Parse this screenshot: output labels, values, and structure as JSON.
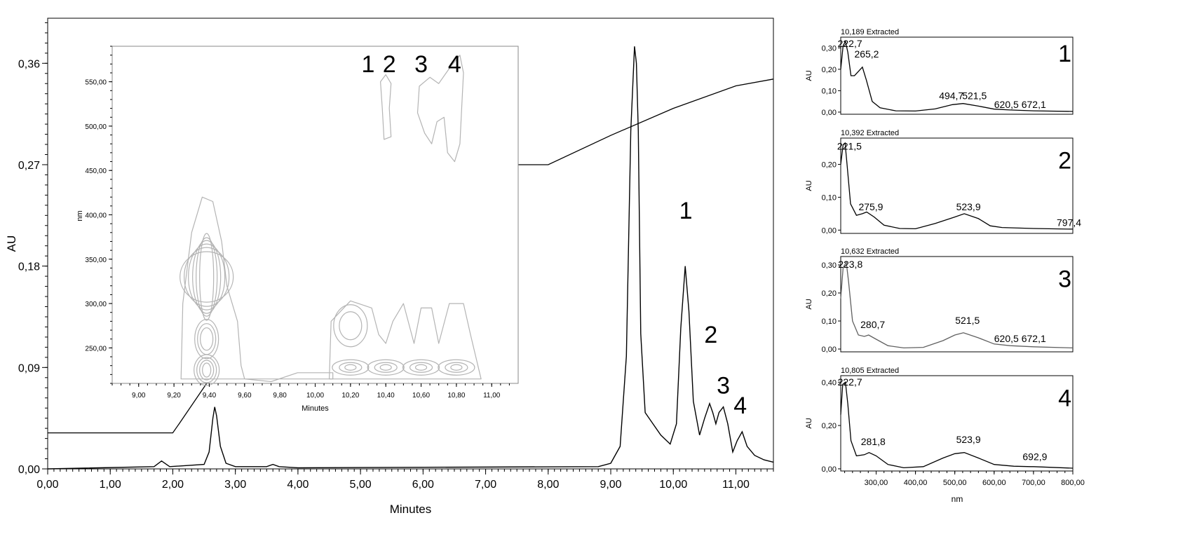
{
  "chart_data": [
    {
      "id": "main",
      "type": "line",
      "xlabel": "Minutes",
      "ylabel": "AU",
      "xlim": [
        0,
        11.6
      ],
      "ylim": [
        0,
        0.4
      ],
      "x_ticks": [
        0,
        1,
        2,
        3,
        4,
        5,
        6,
        7,
        8,
        9,
        10,
        11
      ],
      "x_tick_labels": [
        "0,00",
        "1,00",
        "2,00",
        "3,00",
        "4,00",
        "5,00",
        "6,00",
        "7,00",
        "8,00",
        "9,00",
        "10,00",
        "11,00"
      ],
      "y_ticks": [
        0,
        0.09,
        0.18,
        0.27,
        0.36
      ],
      "y_tick_labels": [
        "0,00",
        "0,09",
        "0,18",
        "0,27",
        "0,36"
      ],
      "series": [
        {
          "role": "chromatogram",
          "x": [
            0,
            1.7,
            1.82,
            1.95,
            2.5,
            2.58,
            2.64,
            2.67,
            2.7,
            2.76,
            2.85,
            3.0,
            3.5,
            3.6,
            3.7,
            4.0,
            8.8,
            9.0,
            9.15,
            9.25,
            9.32,
            9.38,
            9.41,
            9.44,
            9.48,
            9.55,
            9.65,
            9.8,
            9.95,
            10.05,
            10.12,
            10.19,
            10.25,
            10.32,
            10.42,
            10.5,
            10.58,
            10.63,
            10.68,
            10.73,
            10.8,
            10.87,
            10.95,
            11.02,
            11.1,
            11.18,
            11.3,
            11.45,
            11.6
          ],
          "values": [
            0,
            0.002,
            0.007,
            0.002,
            0.004,
            0.015,
            0.045,
            0.055,
            0.047,
            0.02,
            0.005,
            0.002,
            0.002,
            0.004,
            0.002,
            0.001,
            0.002,
            0.005,
            0.02,
            0.1,
            0.3,
            0.375,
            0.36,
            0.3,
            0.12,
            0.05,
            0.042,
            0.03,
            0.022,
            0.04,
            0.125,
            0.18,
            0.14,
            0.06,
            0.03,
            0.045,
            0.058,
            0.05,
            0.04,
            0.05,
            0.055,
            0.04,
            0.015,
            0.025,
            0.033,
            0.02,
            0.012,
            0.008,
            0.006
          ]
        },
        {
          "role": "gradient",
          "x": [
            0,
            2.0,
            2.1,
            4.8,
            5.1,
            8.0,
            9.0,
            10.0,
            11.0,
            11.6
          ],
          "values": [
            0.032,
            0.032,
            0.04,
            0.26,
            0.27,
            0.27,
            0.296,
            0.32,
            0.34,
            0.346
          ]
        }
      ],
      "peak_labels": [
        "1",
        "2",
        "3",
        "4"
      ]
    },
    {
      "id": "contour",
      "type": "contour",
      "xlabel": "Minutes",
      "ylabel": "nm",
      "xlim": [
        8.85,
        11.15
      ],
      "ylim": [
        210,
        590
      ],
      "x_tick_labels": [
        "9,00",
        "9,20",
        "9,40",
        "9,60",
        "9,80",
        "10,00",
        "10,20",
        "10,40",
        "10,60",
        "10,80",
        "11,00"
      ],
      "x_ticks": [
        9.0,
        9.2,
        9.4,
        9.6,
        9.8,
        10.0,
        10.2,
        10.4,
        10.6,
        10.8,
        11.0
      ],
      "y_tick_labels": [
        "250,00",
        "300,00",
        "350,00",
        "400,00",
        "450,00",
        "500,00",
        "550,00"
      ],
      "y_ticks": [
        250,
        300,
        350,
        400,
        450,
        500,
        550
      ],
      "peak_labels": [
        "1",
        "2",
        "3",
        "4"
      ]
    },
    {
      "id": "spectrum-1",
      "type": "line",
      "title": "10,189 Extracted",
      "ylabel": "AU",
      "panel_label": "1",
      "ylim": [
        -0.01,
        0.35
      ],
      "y_ticks": [
        0,
        0.1,
        0.2,
        0.3
      ],
      "y_tick_labels": [
        "0,00",
        "0,10",
        "0,20",
        "0,30"
      ],
      "xlim": [
        210,
        800
      ],
      "x": [
        210,
        216,
        222,
        228,
        236,
        245,
        255,
        265,
        275,
        290,
        310,
        350,
        400,
        450,
        494,
        521,
        560,
        600,
        640,
        700,
        800
      ],
      "values": [
        0.2,
        0.31,
        0.33,
        0.28,
        0.17,
        0.17,
        0.19,
        0.21,
        0.15,
        0.05,
        0.02,
        0.006,
        0.005,
        0.015,
        0.035,
        0.04,
        0.028,
        0.014,
        0.01,
        0.006,
        0.003
      ],
      "peak_labels": [
        "222,7",
        "265,2",
        "494,7",
        "521,5",
        "620,5",
        "672,1"
      ]
    },
    {
      "id": "spectrum-2",
      "type": "line",
      "title": "10,392 Extracted",
      "ylabel": "AU",
      "panel_label": "2",
      "ylim": [
        -0.01,
        0.28
      ],
      "y_ticks": [
        0,
        0.1,
        0.2
      ],
      "y_tick_labels": [
        "0,00",
        "0,10",
        "0,20"
      ],
      "xlim": [
        210,
        800
      ],
      "x": [
        210,
        216,
        221,
        226,
        235,
        250,
        265,
        276,
        295,
        320,
        360,
        400,
        450,
        500,
        524,
        560,
        590,
        620,
        700,
        797,
        800
      ],
      "values": [
        0.2,
        0.26,
        0.265,
        0.2,
        0.08,
        0.045,
        0.05,
        0.055,
        0.04,
        0.015,
        0.005,
        0.004,
        0.02,
        0.04,
        0.05,
        0.035,
        0.013,
        0.008,
        0.005,
        0.003,
        0.003
      ],
      "peak_labels": [
        "221,5",
        "275,9",
        "523,9",
        "797,4"
      ]
    },
    {
      "id": "spectrum-3",
      "type": "line",
      "title": "10,632 Extracted",
      "ylabel": "AU",
      "panel_label": "3",
      "ylim": [
        -0.01,
        0.33
      ],
      "y_ticks": [
        0,
        0.1,
        0.2,
        0.3
      ],
      "y_tick_labels": [
        "0,00",
        "0,10",
        "0,20",
        "0,30"
      ],
      "xlim": [
        210,
        800
      ],
      "x": [
        210,
        216,
        224,
        230,
        240,
        255,
        270,
        281,
        300,
        330,
        370,
        420,
        470,
        500,
        522,
        560,
        600,
        640,
        700,
        800
      ],
      "values": [
        0.18,
        0.29,
        0.31,
        0.24,
        0.1,
        0.05,
        0.045,
        0.05,
        0.035,
        0.012,
        0.004,
        0.006,
        0.03,
        0.05,
        0.058,
        0.04,
        0.018,
        0.012,
        0.008,
        0.004
      ],
      "peak_labels": [
        "223,8",
        "280,7",
        "521,5",
        "620,5",
        "672,1"
      ]
    },
    {
      "id": "spectrum-4",
      "type": "line",
      "title": "10,805 Extracted",
      "ylabel": "AU",
      "panel_label": "4",
      "ylim": [
        -0.01,
        0.43
      ],
      "y_ticks": [
        0,
        0.2,
        0.4
      ],
      "y_tick_labels": [
        "0,00",
        "0,20",
        "0,40"
      ],
      "xlim": [
        210,
        800
      ],
      "x": [
        210,
        215,
        222,
        228,
        236,
        250,
        270,
        282,
        300,
        330,
        370,
        420,
        470,
        500,
        524,
        560,
        600,
        650,
        693,
        700,
        800
      ],
      "values": [
        0.25,
        0.39,
        0.4,
        0.3,
        0.13,
        0.06,
        0.065,
        0.075,
        0.06,
        0.02,
        0.005,
        0.01,
        0.05,
        0.07,
        0.075,
        0.05,
        0.02,
        0.012,
        0.01,
        0.01,
        0.003
      ],
      "peak_labels": [
        "222,7",
        "281,8",
        "523,9",
        "692,9"
      ]
    },
    {
      "id": "spectra-xaxis",
      "type": "axis",
      "xlabel": "nm",
      "x_ticks": [
        300,
        400,
        500,
        600,
        700,
        800
      ],
      "x_tick_labels": [
        "300,00",
        "400,00",
        "500,00",
        "600,00",
        "700,00",
        "800,00"
      ]
    }
  ]
}
